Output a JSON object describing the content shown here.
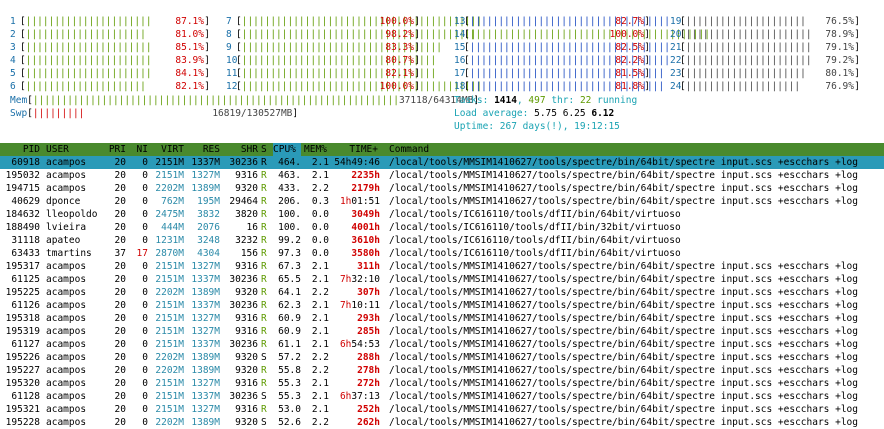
{
  "cpus": [
    {
      "n": "1",
      "bar": "||||||||||||||||||||||",
      "pct": "87.1%"
    },
    {
      "n": "2",
      "bar": "|||||||||||||||||||||",
      "pct": "81.0%"
    },
    {
      "n": "3",
      "bar": "||||||||||||||||||||||",
      "pct": "85.1%"
    },
    {
      "n": "4",
      "bar": "||||||||||||||||||||||",
      "pct": "83.9%"
    },
    {
      "n": "5",
      "bar": "||||||||||||||||||||||",
      "pct": "84.1%"
    },
    {
      "n": "6",
      "bar": "|||||||||||||||||||||",
      "pct": "82.1%"
    },
    {
      "n": "7",
      "bar": "||||||||||||||||||||||||||||||||||||||||||",
      "pct": "100.0%"
    },
    {
      "n": "8",
      "bar": "|||||||||||||||||||||||||||||||||||||||||",
      "pct": "98.2%"
    },
    {
      "n": "9",
      "bar": "|||||||||||||||||||||||||||||||||||",
      "pct": "83.3%"
    },
    {
      "n": "10",
      "bar": "||||||||||||||||||||||||||||||||||",
      "pct": "80.7%"
    },
    {
      "n": "11",
      "bar": "||||||||||||||||||||||||||||||||||",
      "pct": "82.1%"
    },
    {
      "n": "12",
      "bar": "||||||||||||||||||||||||||||||||||||||||||",
      "pct": "100.0%"
    },
    {
      "n": "13",
      "bar": "|||||||||||||||||||||||||||||||||||",
      "pct": "82.7%"
    },
    {
      "n": "14",
      "bar": "||||||||||||||||||||||||||||||||||||||||||",
      "pct": "100.0%"
    },
    {
      "n": "15",
      "bar": "|||||||||||||||||||||||||||||||||||",
      "pct": "82.5%"
    },
    {
      "n": "16",
      "bar": "|||||||||||||||||||||||||||||||||||",
      "pct": "82.2%"
    },
    {
      "n": "17",
      "bar": "||||||||||||||||||||||||||||||||||",
      "pct": "81.5%"
    },
    {
      "n": "18",
      "bar": "||||||||||||||||||||||||||||||||||",
      "pct": "81.8%"
    },
    {
      "n": "19",
      "bar": "|||||||||||||||||||||",
      "pct": "76.5%"
    },
    {
      "n": "20",
      "bar": "||||||||||||||||||||||",
      "pct": "78.9%"
    },
    {
      "n": "21",
      "bar": "||||||||||||||||||||||",
      "pct": "79.1%"
    },
    {
      "n": "22",
      "bar": "||||||||||||||||||||||",
      "pct": "79.2%"
    },
    {
      "n": "23",
      "bar": "|||||||||||||||||||||",
      "pct": "80.1%"
    },
    {
      "n": "24",
      "bar": "||||||||||||||||||||",
      "pct": "76.9%"
    }
  ],
  "mem": {
    "label": "Mem",
    "bar": "||||||||||||||||||||||||||||||||||||||||||||||||||||||||||||||||",
    "value": "37118/64314MB"
  },
  "swp": {
    "label": "Swp",
    "bar": "|||||||||",
    "value": "16819/130527MB"
  },
  "tasks": {
    "label": "Tasks:",
    "count": "1414",
    "sep": ",",
    "thr": "497",
    "thr_label": "thr:",
    "running": "22",
    "running_label": "running"
  },
  "load": {
    "label": "Load average:",
    "a": "5.75",
    "b": "6.25",
    "c": "6.12"
  },
  "uptime": {
    "label": "Uptime:",
    "value": "267 days(!), 19:12:15"
  },
  "header": {
    "pid": "PID",
    "user": "USER",
    "pri": "PRI",
    "ni": "NI",
    "virt": "VIRT",
    "res": "RES",
    "shr": "SHR",
    "s": "S",
    "cpu": "CPU%",
    "mem": "MEM%",
    "time": "TIME+",
    "cmd": "Command"
  },
  "processes": [
    {
      "pid": "60918",
      "user": "acampos",
      "pri": "20",
      "ni": "0",
      "virt": "2151M",
      "res": "1337M",
      "shr": "30236",
      "s": "R",
      "cpu": "464.",
      "mem": "2.1",
      "time": "54h49:46",
      "cmd": "/local/tools/MMSIM1410627/tools/spectre/bin/64bit/spectre input.scs +escchars +log"
    },
    {
      "pid": "195032",
      "user": "acampos",
      "pri": "20",
      "ni": "0",
      "virt": "2151M",
      "res": "1327M",
      "shr": "9316",
      "s": "R",
      "cpu": "463.",
      "mem": "2.1",
      "time": "2235h",
      "cmd": "/local/tools/MMSIM1410627/tools/spectre/bin/64bit/spectre input.scs +escchars +log"
    },
    {
      "pid": "194715",
      "user": "acampos",
      "pri": "20",
      "ni": "0",
      "virt": "2202M",
      "res": "1389M",
      "shr": "9320",
      "s": "R",
      "cpu": "433.",
      "mem": "2.2",
      "time": "2179h",
      "cmd": "/local/tools/MMSIM1410627/tools/spectre/bin/64bit/spectre input.scs +escchars +log"
    },
    {
      "pid": "40629",
      "user": "dponce",
      "pri": "20",
      "ni": "0",
      "virt": "762M",
      "res": "195M",
      "shr": "29464",
      "s": "R",
      "cpu": "206.",
      "mem": "0.3",
      "time": "1h01:51",
      "cmd": "/local/tools/MMSIM1410627/tools/spectre/bin/64bit/spectre input.scs +escchars +log"
    },
    {
      "pid": "184632",
      "user": "lleopoldo",
      "pri": "20",
      "ni": "0",
      "virt": "2475M",
      "res": "3832",
      "shr": "3820",
      "s": "R",
      "cpu": "100.",
      "mem": "0.0",
      "time": "3049h",
      "cmd": "/local/tools/IC616110/tools/dfII/bin/64bit/virtuoso"
    },
    {
      "pid": "188490",
      "user": "lvieira",
      "pri": "20",
      "ni": "0",
      "virt": "444M",
      "res": "2076",
      "shr": "16",
      "s": "R",
      "cpu": "100.",
      "mem": "0.0",
      "time": "4001h",
      "cmd": "/local/tools/IC616110/tools/dfII/bin/32bit/virtuoso"
    },
    {
      "pid": "31118",
      "user": "apateo",
      "pri": "20",
      "ni": "0",
      "virt": "1231M",
      "res": "3248",
      "shr": "3232",
      "s": "R",
      "cpu": "99.2",
      "mem": "0.0",
      "time": "3610h",
      "cmd": "/local/tools/IC616110/tools/dfII/bin/64bit/virtuoso"
    },
    {
      "pid": "63433",
      "user": "tmartins",
      "pri": "37",
      "ni": "17",
      "virt": "2870M",
      "res": "4304",
      "shr": "156",
      "s": "R",
      "cpu": "97.3",
      "mem": "0.0",
      "time": "3580h",
      "cmd": "/local/tools/IC616110/tools/dfII/bin/64bit/virtuoso"
    },
    {
      "pid": "195317",
      "user": "acampos",
      "pri": "20",
      "ni": "0",
      "virt": "2151M",
      "res": "1327M",
      "shr": "9316",
      "s": "R",
      "cpu": "67.3",
      "mem": "2.1",
      "time": "311h",
      "cmd": "/local/tools/MMSIM1410627/tools/spectre/bin/64bit/spectre input.scs +escchars +log"
    },
    {
      "pid": "61125",
      "user": "acampos",
      "pri": "20",
      "ni": "0",
      "virt": "2151M",
      "res": "1337M",
      "shr": "30236",
      "s": "R",
      "cpu": "65.5",
      "mem": "2.1",
      "time": "7h32:10",
      "cmd": "/local/tools/MMSIM1410627/tools/spectre/bin/64bit/spectre input.scs +escchars +log"
    },
    {
      "pid": "195225",
      "user": "acampos",
      "pri": "20",
      "ni": "0",
      "virt": "2202M",
      "res": "1389M",
      "shr": "9320",
      "s": "R",
      "cpu": "64.1",
      "mem": "2.2",
      "time": "307h",
      "cmd": "/local/tools/MMSIM1410627/tools/spectre/bin/64bit/spectre input.scs +escchars +log"
    },
    {
      "pid": "61126",
      "user": "acampos",
      "pri": "20",
      "ni": "0",
      "virt": "2151M",
      "res": "1337M",
      "shr": "30236",
      "s": "R",
      "cpu": "62.3",
      "mem": "2.1",
      "time": "7h10:11",
      "cmd": "/local/tools/MMSIM1410627/tools/spectre/bin/64bit/spectre input.scs +escchars +log"
    },
    {
      "pid": "195318",
      "user": "acampos",
      "pri": "20",
      "ni": "0",
      "virt": "2151M",
      "res": "1327M",
      "shr": "9316",
      "s": "R",
      "cpu": "60.9",
      "mem": "2.1",
      "time": "293h",
      "cmd": "/local/tools/MMSIM1410627/tools/spectre/bin/64bit/spectre input.scs +escchars +log"
    },
    {
      "pid": "195319",
      "user": "acampos",
      "pri": "20",
      "ni": "0",
      "virt": "2151M",
      "res": "1327M",
      "shr": "9316",
      "s": "R",
      "cpu": "60.9",
      "mem": "2.1",
      "time": "285h",
      "cmd": "/local/tools/MMSIM1410627/tools/spectre/bin/64bit/spectre input.scs +escchars +log"
    },
    {
      "pid": "61127",
      "user": "acampos",
      "pri": "20",
      "ni": "0",
      "virt": "2151M",
      "res": "1337M",
      "shr": "30236",
      "s": "R",
      "cpu": "61.1",
      "mem": "2.1",
      "time": "6h54:53",
      "cmd": "/local/tools/MMSIM1410627/tools/spectre/bin/64bit/spectre input.scs +escchars +log"
    },
    {
      "pid": "195226",
      "user": "acampos",
      "pri": "20",
      "ni": "0",
      "virt": "2202M",
      "res": "1389M",
      "shr": "9320",
      "s": "S",
      "cpu": "57.2",
      "mem": "2.2",
      "time": "288h",
      "cmd": "/local/tools/MMSIM1410627/tools/spectre/bin/64bit/spectre input.scs +escchars +log"
    },
    {
      "pid": "195227",
      "user": "acampos",
      "pri": "20",
      "ni": "0",
      "virt": "2202M",
      "res": "1389M",
      "shr": "9320",
      "s": "R",
      "cpu": "55.8",
      "mem": "2.2",
      "time": "278h",
      "cmd": "/local/tools/MMSIM1410627/tools/spectre/bin/64bit/spectre input.scs +escchars +log"
    },
    {
      "pid": "195320",
      "user": "acampos",
      "pri": "20",
      "ni": "0",
      "virt": "2151M",
      "res": "1327M",
      "shr": "9316",
      "s": "R",
      "cpu": "55.3",
      "mem": "2.1",
      "time": "272h",
      "cmd": "/local/tools/MMSIM1410627/tools/spectre/bin/64bit/spectre input.scs +escchars +log"
    },
    {
      "pid": "61128",
      "user": "acampos",
      "pri": "20",
      "ni": "0",
      "virt": "2151M",
      "res": "1337M",
      "shr": "30236",
      "s": "S",
      "cpu": "55.3",
      "mem": "2.1",
      "time": "6h37:13",
      "cmd": "/local/tools/MMSIM1410627/tools/spectre/bin/64bit/spectre input.scs +escchars +log"
    },
    {
      "pid": "195321",
      "user": "acampos",
      "pri": "20",
      "ni": "0",
      "virt": "2151M",
      "res": "1327M",
      "shr": "9316",
      "s": "R",
      "cpu": "53.0",
      "mem": "2.1",
      "time": "252h",
      "cmd": "/local/tools/MMSIM1410627/tools/spectre/bin/64bit/spectre input.scs +escchars +log"
    },
    {
      "pid": "195228",
      "user": "acampos",
      "pri": "20",
      "ni": "0",
      "virt": "2202M",
      "res": "1389M",
      "shr": "9320",
      "s": "S",
      "cpu": "52.6",
      "mem": "2.2",
      "time": "262h",
      "cmd": "/local/tools/MMSIM1410627/tools/spectre/bin/64bit/spectre input.scs +escchars +log"
    }
  ]
}
